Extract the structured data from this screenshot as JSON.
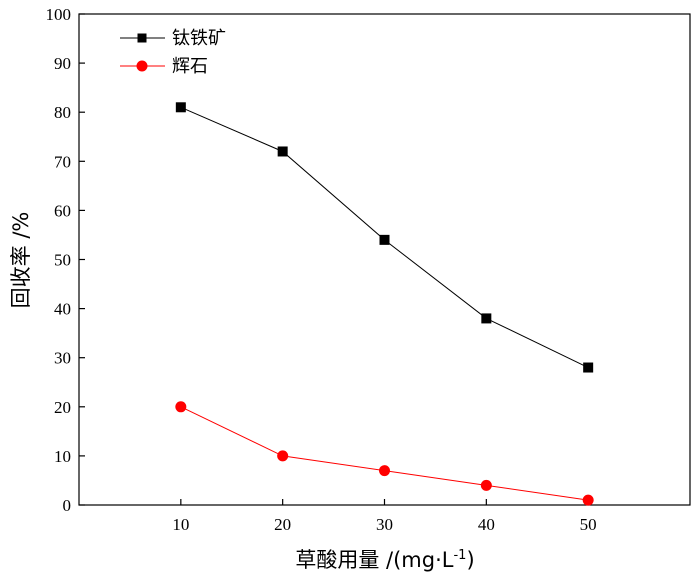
{
  "chart_data": {
    "type": "line",
    "title": "",
    "xlabel": "草酸用量 /(mg·L",
    "xlabel_sup": "-1",
    "xlabel_close": ")",
    "ylabel": "回收率 /%",
    "x": [
      10,
      20,
      30,
      40,
      50
    ],
    "xlim": [
      0,
      60
    ],
    "ylim": [
      0,
      100
    ],
    "xticks": [
      10,
      20,
      30,
      40,
      50
    ],
    "yticks": [
      0,
      10,
      20,
      30,
      40,
      50,
      60,
      70,
      80,
      90,
      100
    ],
    "grid": false,
    "legend_position": "top-left",
    "series": [
      {
        "name": "钛铁矿",
        "values": [
          81,
          72,
          54,
          38,
          28
        ],
        "color": "#000000",
        "marker": "square"
      },
      {
        "name": "辉石",
        "values": [
          20,
          10,
          7,
          4,
          1
        ],
        "color": "#ff0000",
        "marker": "circle"
      }
    ]
  }
}
